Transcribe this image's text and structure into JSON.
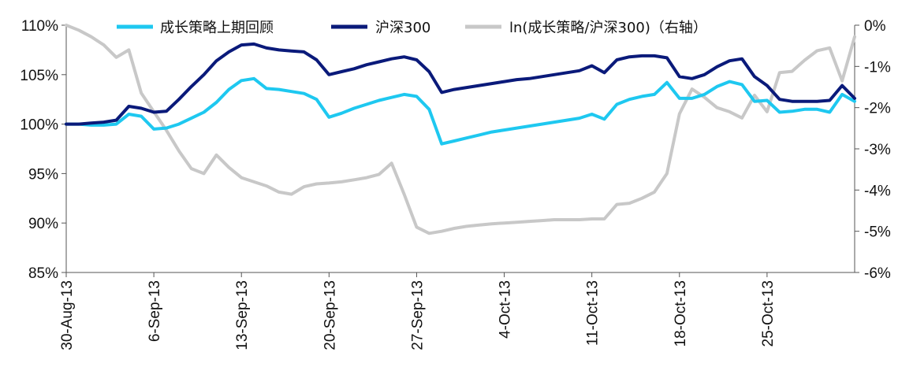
{
  "chart_data": {
    "type": "line",
    "title": "",
    "x_labels": [
      "30-Aug-13",
      "6-Sep-13",
      "13-Sep-13",
      "20-Sep-13",
      "27-Sep-13",
      "4-Oct-13",
      "11-Oct-13",
      "18-Oct-13",
      "25-Oct-13"
    ],
    "x_domain": [
      0,
      63
    ],
    "y_left": {
      "min": 85,
      "max": 110,
      "ticks": [
        "85%",
        "90%",
        "95%",
        "100%",
        "105%",
        "110%"
      ],
      "unit": "%"
    },
    "y_right": {
      "min": -6,
      "max": 0,
      "ticks": [
        "-6%",
        "-5%",
        "-4%",
        "-3%",
        "-2%",
        "-1%",
        "0%"
      ],
      "unit": "%"
    },
    "legend_position": "top",
    "series": [
      {
        "name": "成长策略上期回顾",
        "axis": "left",
        "color": "#1ec8f0",
        "points": [
          [
            0,
            100
          ],
          [
            1,
            100
          ],
          [
            2,
            99.9
          ],
          [
            3,
            99.9
          ],
          [
            4,
            100
          ],
          [
            5,
            101
          ],
          [
            6,
            100.8
          ],
          [
            7,
            99.5
          ],
          [
            8,
            99.6
          ],
          [
            9,
            100
          ],
          [
            10,
            100.6
          ],
          [
            11,
            101.2
          ],
          [
            12,
            102.2
          ],
          [
            13,
            103.5
          ],
          [
            14,
            104.4
          ],
          [
            15,
            104.6
          ],
          [
            16,
            103.6
          ],
          [
            17,
            103.5
          ],
          [
            18,
            103.3
          ],
          [
            19,
            103.1
          ],
          [
            20,
            102.5
          ],
          [
            21,
            100.7
          ],
          [
            22,
            101.1
          ],
          [
            23,
            101.6
          ],
          [
            24,
            102
          ],
          [
            25,
            102.4
          ],
          [
            26,
            102.7
          ],
          [
            27,
            103
          ],
          [
            28,
            102.8
          ],
          [
            29,
            101.5
          ],
          [
            30,
            98
          ],
          [
            31,
            98.3
          ],
          [
            32,
            98.6
          ],
          [
            33,
            98.9
          ],
          [
            34,
            99.2
          ],
          [
            35,
            99.4
          ],
          [
            36,
            99.6
          ],
          [
            37,
            99.8
          ],
          [
            38,
            100
          ],
          [
            39,
            100.2
          ],
          [
            40,
            100.4
          ],
          [
            41,
            100.6
          ],
          [
            42,
            101
          ],
          [
            43,
            100.5
          ],
          [
            44,
            102
          ],
          [
            45,
            102.5
          ],
          [
            46,
            102.8
          ],
          [
            47,
            103
          ],
          [
            48,
            104.2
          ],
          [
            49,
            102.6
          ],
          [
            50,
            102.6
          ],
          [
            51,
            103
          ],
          [
            52,
            103.8
          ],
          [
            53,
            104.3
          ],
          [
            54,
            104
          ],
          [
            55,
            102.3
          ],
          [
            56,
            102.4
          ],
          [
            57,
            101.2
          ],
          [
            58,
            101.3
          ],
          [
            59,
            101.5
          ],
          [
            60,
            101.5
          ],
          [
            61,
            101.2
          ],
          [
            62,
            103
          ],
          [
            63,
            102.3
          ]
        ]
      },
      {
        "name": "沪深300",
        "axis": "left",
        "color": "#0a1a7a",
        "points": [
          [
            0,
            100
          ],
          [
            1,
            100
          ],
          [
            2,
            100.1
          ],
          [
            3,
            100.2
          ],
          [
            4,
            100.4
          ],
          [
            5,
            101.8
          ],
          [
            6,
            101.6
          ],
          [
            7,
            101.2
          ],
          [
            8,
            101.3
          ],
          [
            9,
            102.5
          ],
          [
            10,
            103.8
          ],
          [
            11,
            105
          ],
          [
            12,
            106.4
          ],
          [
            13,
            107.3
          ],
          [
            14,
            108
          ],
          [
            15,
            108.1
          ],
          [
            16,
            107.7
          ],
          [
            17,
            107.5
          ],
          [
            18,
            107.4
          ],
          [
            19,
            107.3
          ],
          [
            20,
            106.5
          ],
          [
            21,
            105
          ],
          [
            22,
            105.3
          ],
          [
            23,
            105.6
          ],
          [
            24,
            106
          ],
          [
            25,
            106.3
          ],
          [
            26,
            106.6
          ],
          [
            27,
            106.8
          ],
          [
            28,
            106.5
          ],
          [
            29,
            105.3
          ],
          [
            30,
            103.2
          ],
          [
            31,
            103.5
          ],
          [
            32,
            103.7
          ],
          [
            33,
            103.9
          ],
          [
            34,
            104.1
          ],
          [
            35,
            104.3
          ],
          [
            36,
            104.5
          ],
          [
            37,
            104.6
          ],
          [
            38,
            104.8
          ],
          [
            39,
            105
          ],
          [
            40,
            105.2
          ],
          [
            41,
            105.4
          ],
          [
            42,
            105.9
          ],
          [
            43,
            105.2
          ],
          [
            44,
            106.5
          ],
          [
            45,
            106.8
          ],
          [
            46,
            106.9
          ],
          [
            47,
            106.9
          ],
          [
            48,
            106.7
          ],
          [
            49,
            104.8
          ],
          [
            50,
            104.6
          ],
          [
            51,
            105
          ],
          [
            52,
            105.8
          ],
          [
            53,
            106.4
          ],
          [
            54,
            106.6
          ],
          [
            55,
            104.8
          ],
          [
            56,
            103.9
          ],
          [
            57,
            102.5
          ],
          [
            58,
            102.3
          ],
          [
            59,
            102.3
          ],
          [
            60,
            102.3
          ],
          [
            61,
            102.4
          ],
          [
            62,
            103.9
          ],
          [
            63,
            102.6
          ]
        ]
      },
      {
        "name": "ln(成长策略/沪深300)（右轴）",
        "axis": "right",
        "color": "#c8c8c8",
        "points": [
          [
            0,
            0
          ],
          [
            1,
            -0.12
          ],
          [
            2,
            -0.28
          ],
          [
            3,
            -0.48
          ],
          [
            4,
            -0.78
          ],
          [
            5,
            -0.6
          ],
          [
            6,
            -1.65
          ],
          [
            7,
            -2.1
          ],
          [
            8,
            -2.55
          ],
          [
            9,
            -3.05
          ],
          [
            10,
            -3.48
          ],
          [
            11,
            -3.6
          ],
          [
            12,
            -3.15
          ],
          [
            13,
            -3.45
          ],
          [
            14,
            -3.7
          ],
          [
            15,
            -3.8
          ],
          [
            16,
            -3.9
          ],
          [
            17,
            -4.05
          ],
          [
            18,
            -4.1
          ],
          [
            19,
            -3.92
          ],
          [
            20,
            -3.85
          ],
          [
            21,
            -3.83
          ],
          [
            22,
            -3.8
          ],
          [
            23,
            -3.75
          ],
          [
            24,
            -3.7
          ],
          [
            25,
            -3.62
          ],
          [
            26,
            -3.35
          ],
          [
            27,
            -4.1
          ],
          [
            28,
            -4.9
          ],
          [
            29,
            -5.05
          ],
          [
            30,
            -5.0
          ],
          [
            31,
            -4.93
          ],
          [
            32,
            -4.88
          ],
          [
            33,
            -4.85
          ],
          [
            34,
            -4.82
          ],
          [
            35,
            -4.8
          ],
          [
            36,
            -4.78
          ],
          [
            37,
            -4.76
          ],
          [
            38,
            -4.74
          ],
          [
            39,
            -4.72
          ],
          [
            40,
            -4.72
          ],
          [
            41,
            -4.72
          ],
          [
            42,
            -4.7
          ],
          [
            43,
            -4.7
          ],
          [
            44,
            -4.35
          ],
          [
            45,
            -4.32
          ],
          [
            46,
            -4.2
          ],
          [
            47,
            -4.05
          ],
          [
            48,
            -3.6
          ],
          [
            49,
            -2.15
          ],
          [
            50,
            -1.55
          ],
          [
            51,
            -1.75
          ],
          [
            52,
            -2.0
          ],
          [
            53,
            -2.1
          ],
          [
            54,
            -2.25
          ],
          [
            55,
            -1.7
          ],
          [
            56,
            -2.1
          ],
          [
            57,
            -1.15
          ],
          [
            58,
            -1.12
          ],
          [
            59,
            -0.85
          ],
          [
            60,
            -0.62
          ],
          [
            61,
            -0.55
          ],
          [
            62,
            -1.35
          ],
          [
            63,
            -0.28
          ]
        ]
      }
    ]
  }
}
